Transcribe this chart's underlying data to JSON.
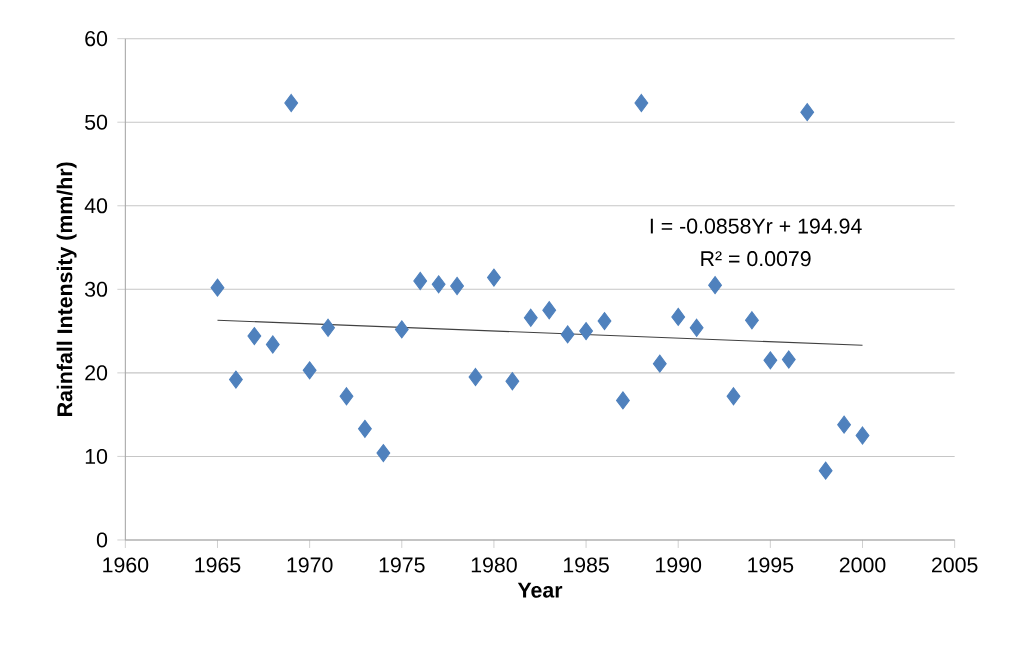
{
  "chart_data": {
    "type": "scatter",
    "xlabel": "Year",
    "ylabel": "Rainfall Intensity (mm/hr)",
    "annotations": [
      "I = -0.0858Yr + 194.94",
      "R² = 0.0079"
    ],
    "series": [
      {
        "color": "#4f81bd",
        "marker": "diamond",
        "x": [
          1965,
          1966,
          1967,
          1968,
          1969,
          1970,
          1971,
          1972,
          1973,
          1974,
          1975,
          1976,
          1977,
          1978,
          1979,
          1980,
          1981,
          1982,
          1983,
          1984,
          1985,
          1986,
          1987,
          1988,
          1989,
          1990,
          1991,
          1992,
          1993,
          1994,
          1995,
          1996,
          1997,
          1998,
          1999,
          2000
        ],
        "values": [
          30.2,
          19.2,
          24.4,
          23.4,
          52.3,
          20.3,
          25.4,
          17.2,
          13.3,
          10.4,
          25.2,
          31.0,
          30.6,
          30.4,
          19.5,
          31.4,
          19.0,
          26.6,
          27.5,
          24.6,
          25.0,
          26.2,
          16.7,
          52.3,
          21.1,
          26.7,
          25.4,
          30.5,
          17.2,
          26.3,
          21.5,
          21.6,
          51.2,
          8.3,
          13.8,
          12.5
        ]
      },
      {
        "type": "line",
        "color": "#404040",
        "marker": "none",
        "x": [
          1965,
          2000
        ],
        "values": [
          26.3,
          23.3
        ]
      }
    ],
    "xlim": [
      1960,
      2005
    ],
    "xticks": [
      1960,
      1965,
      1970,
      1975,
      1980,
      1985,
      1990,
      1995,
      2000,
      2005
    ],
    "ylim": [
      0,
      60
    ],
    "yticks": [
      0,
      10,
      20,
      30,
      40,
      50,
      60
    ],
    "grid": "y"
  }
}
